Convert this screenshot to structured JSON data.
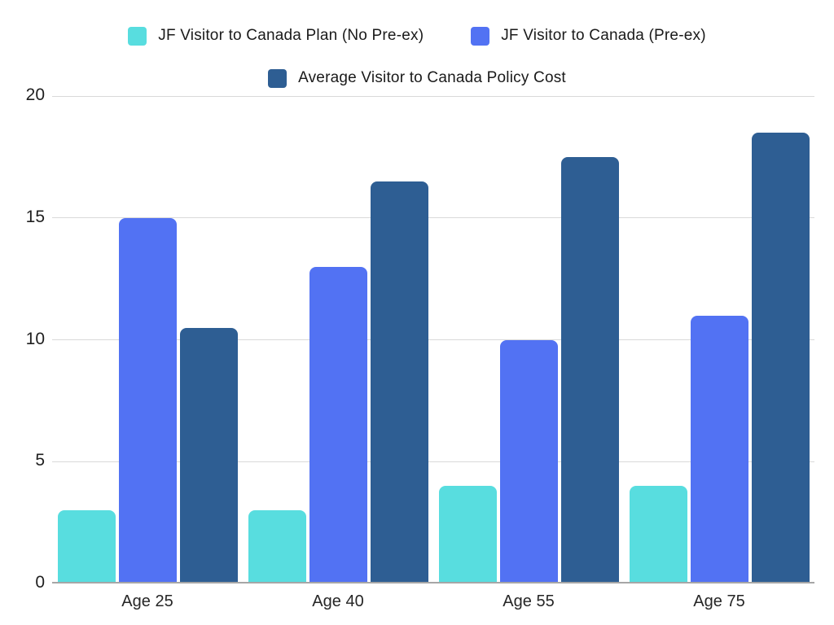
{
  "chart_data": {
    "type": "bar",
    "title": "",
    "xlabel": "",
    "ylabel": "",
    "categories": [
      "Age 25",
      "Age 40",
      "Age 55",
      "Age 75"
    ],
    "series": [
      {
        "name": "JF Visitor to Canada Plan (No Pre-ex)",
        "color": "#58DDDF",
        "values": [
          3,
          3,
          4,
          4
        ]
      },
      {
        "name": "JF Visitor to Canada (Pre-ex)",
        "color": "#5272F3",
        "values": [
          15,
          13,
          10,
          11
        ]
      },
      {
        "name": "Average Visitor to Canada Policy Cost",
        "color": "#2E5E93",
        "values": [
          10.5,
          16.5,
          17.5,
          18.5
        ]
      }
    ],
    "ylim": [
      0,
      20
    ],
    "yticks": [
      0,
      5,
      10,
      15,
      20
    ],
    "grid": true,
    "legend_position": "top"
  },
  "colors": {
    "background": "#ffffff",
    "gridline": "#d9d9d9",
    "axis_line": "#a6a6a6",
    "tick_text": "#1f1f1f",
    "legend_text": "#1a1a1a"
  }
}
